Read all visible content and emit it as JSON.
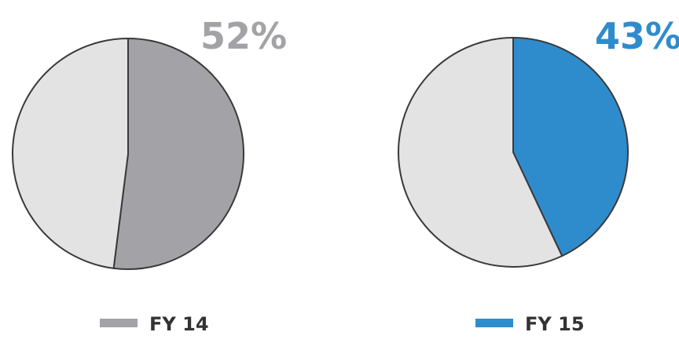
{
  "chart_data": [
    {
      "type": "pie",
      "series_label": "FY 14",
      "value_label": "52%",
      "values": [
        52,
        48
      ],
      "colors": [
        "#a3a3a7",
        "#e3e3e4"
      ],
      "legend_placement": "bottom"
    },
    {
      "type": "pie",
      "series_label": "FY 15",
      "value_label": "43%",
      "values": [
        43,
        57
      ],
      "colors": [
        "#2f8ccc",
        "#e3e3e4"
      ],
      "legend_placement": "bottom"
    }
  ],
  "colors": {
    "fy14": "#a3a3a7",
    "fy15": "#2f8ccc",
    "remainder": "#e3e3e4",
    "outline": "#3a3a3a",
    "legend_text": "#333333"
  }
}
